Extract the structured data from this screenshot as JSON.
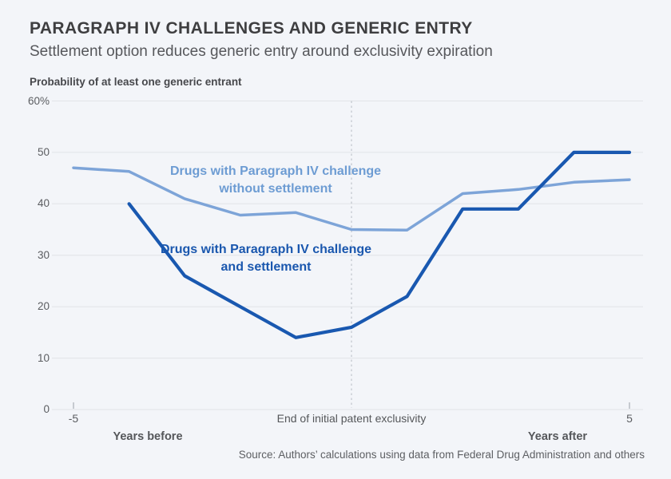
{
  "page": {
    "title": "PARAGRAPH IV CHALLENGES AND GENERIC ENTRY",
    "subtitle": "Settlement option reduces generic entry around exclusivity expiration",
    "source": "Source: Authors’ calculations using data from Federal Drug Administration and others"
  },
  "colors": {
    "background": "#f3f5f9",
    "grid": "#e2e4e8",
    "dashed_line": "#b5bac2",
    "tick_mark": "#9aa0a6",
    "series_without_settlement": "#7da4d8",
    "series_with_settlement": "#1958b0",
    "label_without_settlement": "#6d9cd3",
    "label_with_settlement": "#1a57ae"
  },
  "chart_data": {
    "type": "line",
    "title": "PARAGRAPH IV CHALLENGES AND GENERIC ENTRY",
    "subtitle": "Settlement option reduces generic entry around exclusivity expiration",
    "ylabel": "Probability of at least one generic entrant",
    "xlim": [
      -5,
      5
    ],
    "ylim": [
      0,
      60
    ],
    "grid": true,
    "vline_x": 0,
    "yticks": [
      {
        "value": 0,
        "label": "0"
      },
      {
        "value": 10,
        "label": "10"
      },
      {
        "value": 20,
        "label": "20"
      },
      {
        "value": 30,
        "label": "30"
      },
      {
        "value": 40,
        "label": "40"
      },
      {
        "value": 50,
        "label": "50"
      },
      {
        "value": 60,
        "label": "60%"
      }
    ],
    "xticks": [
      {
        "value": -5,
        "label": "-5"
      },
      {
        "value": 5,
        "label": "5"
      }
    ],
    "series": [
      {
        "name": "without-settlement",
        "label_lines": [
          "Drugs with Paragraph IV challenge",
          "without settlement"
        ],
        "color": "#7da4d8",
        "x": [
          -5,
          -4,
          -3,
          -2,
          -1,
          0,
          1,
          2,
          3,
          4,
          5
        ],
        "values": [
          47,
          46.3,
          41,
          37.8,
          38.3,
          35,
          34.9,
          42,
          42.8,
          44.2,
          44.7
        ]
      },
      {
        "name": "with-settlement",
        "label_lines": [
          "Drugs with Paragraph IV challenge",
          "and settlement"
        ],
        "color": "#1958b0",
        "x": [
          -4,
          -3,
          -2,
          -1,
          0,
          1,
          2,
          3,
          4,
          5
        ],
        "values": [
          40,
          26,
          20,
          14,
          16,
          22,
          39,
          39,
          50,
          50
        ]
      }
    ],
    "annotations": {
      "end_exclusivity": "End of initial patent exclusivity",
      "years_before": "Years before",
      "years_after": "Years after"
    }
  }
}
